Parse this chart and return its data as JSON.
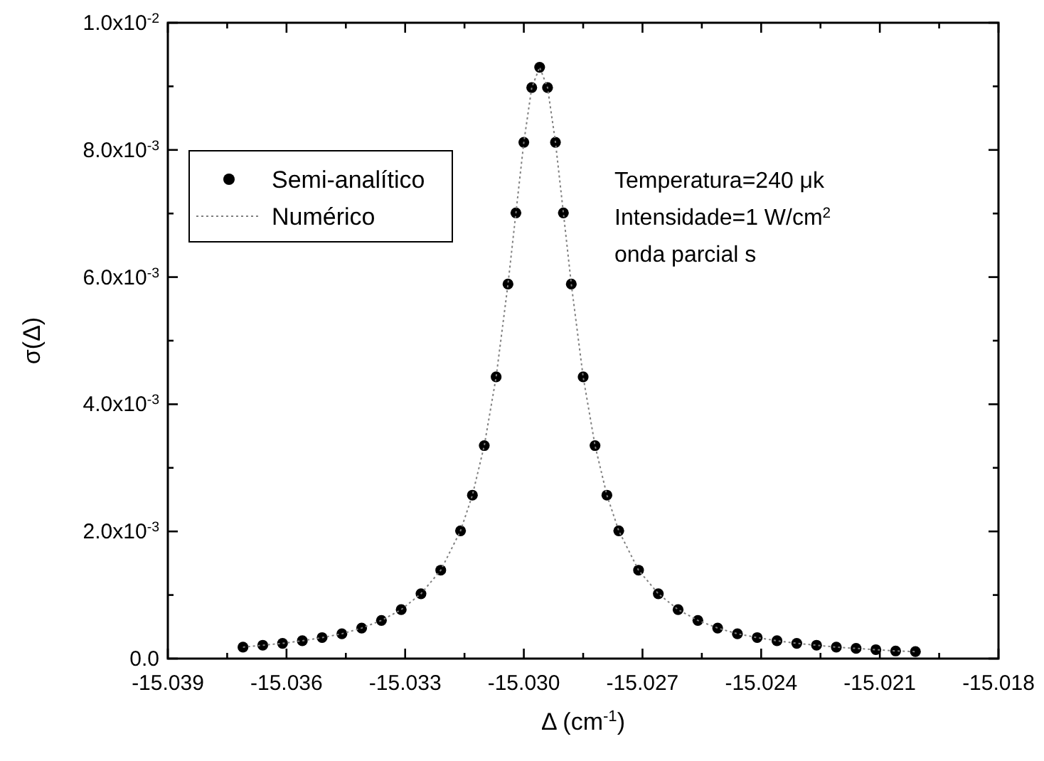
{
  "chart_data": {
    "type": "scatter",
    "xlabel": "Δ (cm$^{-1}$)",
    "ylabel": "σ(Δ)",
    "x": [
      -15.0371,
      -15.0366,
      -15.0361,
      -15.0356,
      -15.0351,
      -15.0346,
      -15.0341,
      -15.0336,
      -15.0331,
      -15.0326,
      -15.0321,
      -15.0316,
      -15.0313,
      -15.031,
      -15.0307,
      -15.0304,
      -15.0302,
      -15.03,
      -15.0298,
      -15.0296,
      -15.0294,
      -15.0292,
      -15.029,
      -15.0288,
      -15.0285,
      -15.0282,
      -15.0279,
      -15.0276,
      -15.0271,
      -15.0266,
      -15.0261,
      -15.0256,
      -15.0251,
      -15.0246,
      -15.0241,
      -15.0236,
      -15.0231,
      -15.0226,
      -15.0221,
      -15.0216,
      -15.0211,
      -15.0206,
      -15.0201
    ],
    "series": [
      {
        "name": "Semi-analítico",
        "marker": "circle",
        "color": "#000000",
        "values": [
          0.00018,
          0.00021,
          0.00024,
          0.00028,
          0.00033,
          0.00039,
          0.00048,
          0.0006,
          0.00077,
          0.00102,
          0.00139,
          0.00201,
          0.00257,
          0.00335,
          0.00443,
          0.00589,
          0.00701,
          0.00812,
          0.00898,
          0.0093,
          0.00898,
          0.00812,
          0.00701,
          0.00589,
          0.00443,
          0.00335,
          0.00257,
          0.00201,
          0.00139,
          0.00102,
          0.00077,
          0.0006,
          0.00048,
          0.00039,
          0.00033,
          0.00028,
          0.00024,
          0.00021,
          0.00018,
          0.00016,
          0.00014,
          0.00012,
          0.00011
        ]
      },
      {
        "name": "Numérico",
        "type": "line",
        "line_style": "dotted",
        "color": "#808080",
        "values": [
          0.00018,
          0.00021,
          0.00024,
          0.00028,
          0.00033,
          0.00039,
          0.00048,
          0.0006,
          0.00077,
          0.00102,
          0.00139,
          0.00201,
          0.00257,
          0.00335,
          0.00443,
          0.00589,
          0.00701,
          0.00812,
          0.00898,
          0.0093,
          0.00898,
          0.00812,
          0.00701,
          0.00589,
          0.00443,
          0.00335,
          0.00257,
          0.00201,
          0.00139,
          0.00102,
          0.00077,
          0.0006,
          0.00048,
          0.00039,
          0.00033,
          0.00028,
          0.00024,
          0.00021,
          0.00018,
          0.00016,
          0.00014,
          0.00012,
          0.00011
        ]
      }
    ],
    "xlim": [
      -15.039,
      -15.018
    ],
    "xticks": [
      -15.039,
      {
        "value": -15.0375,
        "label": null
      },
      -15.036,
      {
        "value": -15.0345,
        "label": null
      },
      -15.033,
      {
        "value": -15.0315,
        "label": null
      },
      {
        "value": -15.03,
        "label": "-15.030"
      },
      {
        "value": -15.0285,
        "label": null
      },
      -15.027,
      {
        "value": -15.0255,
        "label": null
      },
      -15.024,
      {
        "value": -15.0225,
        "label": null
      },
      -15.021,
      {
        "value": -15.0195,
        "label": null
      },
      -15.018
    ],
    "ylim": [
      0,
      0.01
    ],
    "yticks": [
      {
        "value": 0,
        "label": "0.0"
      },
      {
        "value": 0.001,
        "label": null
      },
      {
        "value": 0.002,
        "label": "2.0x10$^{-3}$"
      },
      {
        "value": 0.003,
        "label": null
      },
      {
        "value": 0.004,
        "label": "4.0x10$^{-3}$"
      },
      {
        "value": 0.005,
        "label": null
      },
      {
        "value": 0.006,
        "label": "6.0x10$^{-3}$"
      },
      {
        "value": 0.007,
        "label": null
      },
      {
        "value": 0.008,
        "label": "8.0x10$^{-3}$"
      },
      {
        "value": 0.009,
        "label": null
      },
      {
        "value": 0.01,
        "label": "1.0x10$^{-2}$"
      }
    ],
    "legend": "top left",
    "annotations": [
      "Temperatura=240 μk",
      "Intensidade=1 W/cm$^{2}$",
      "onda parcial s"
    ]
  }
}
